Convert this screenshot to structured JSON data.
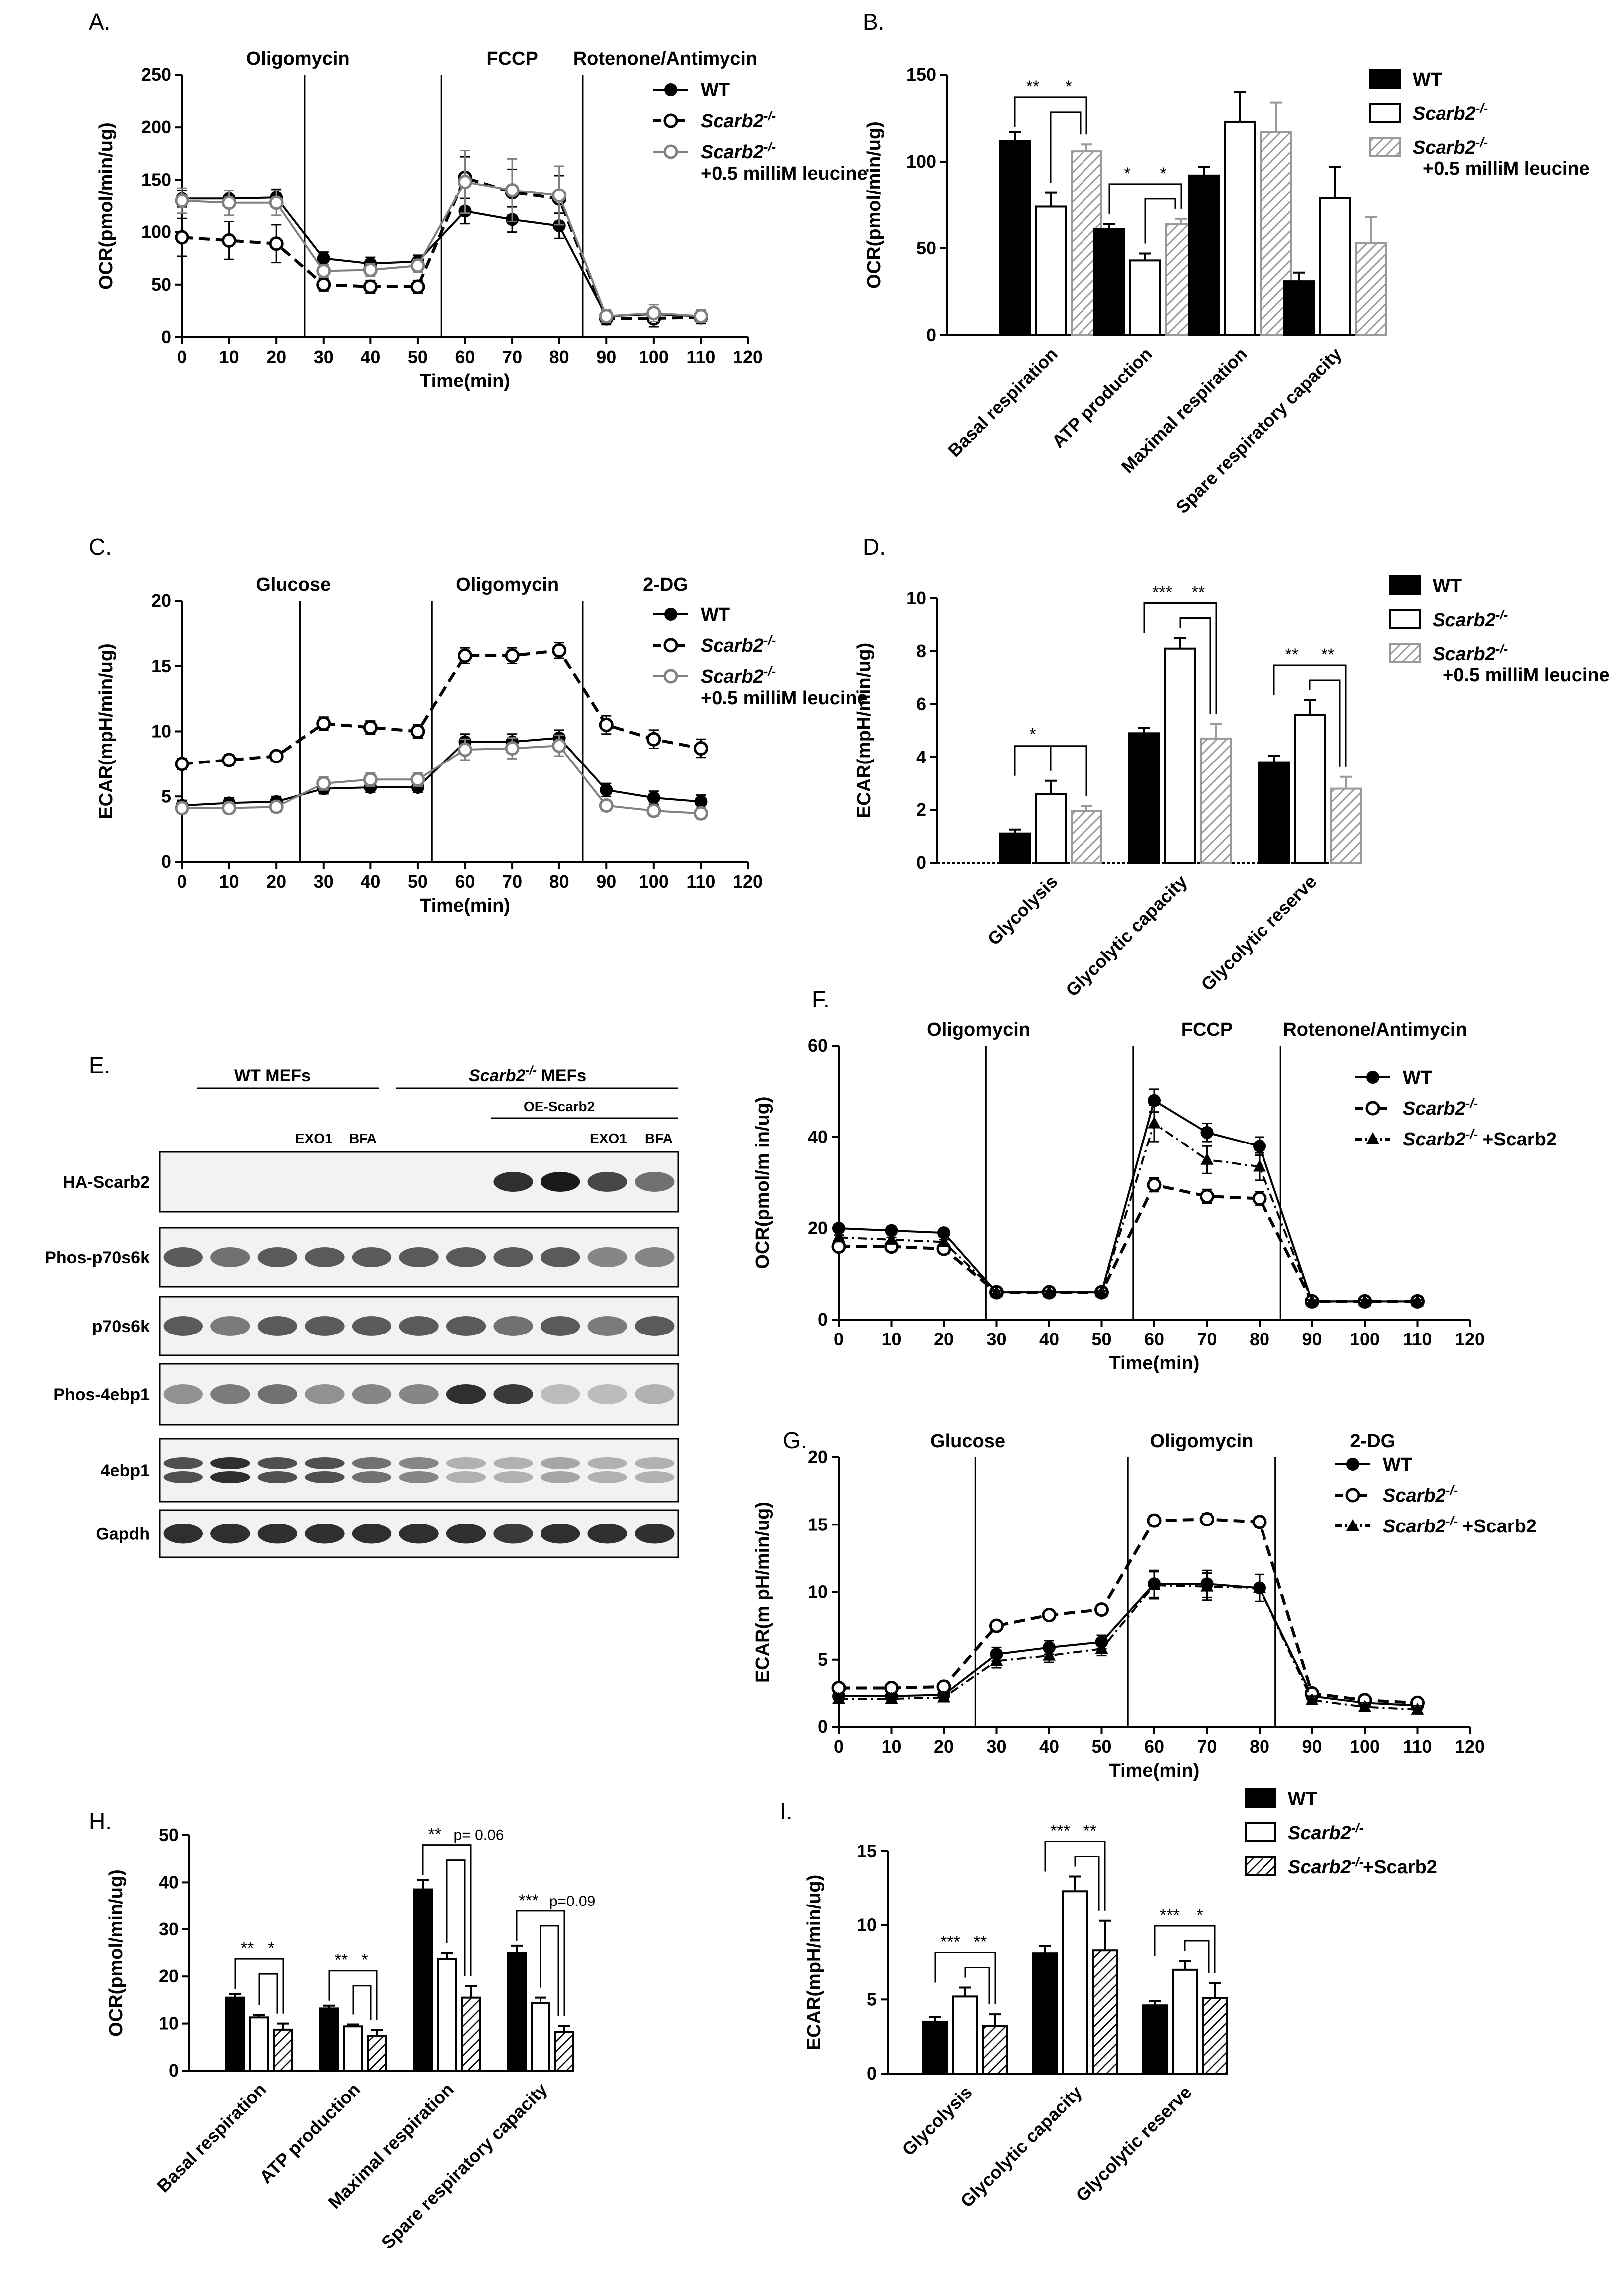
{
  "panels": {
    "A": {
      "label": "A."
    },
    "B": {
      "label": "B."
    },
    "C": {
      "label": "C."
    },
    "D": {
      "label": "D."
    },
    "E": {
      "label": "E."
    },
    "F": {
      "label": "F."
    },
    "G": {
      "label": "G."
    },
    "H": {
      "label": "H."
    },
    "I": {
      "label": "I."
    }
  },
  "legends": {
    "three_leucine": [
      "WT",
      "Scarb2",
      "Scarb2",
      "+0.5 milliM leucine"
    ],
    "three_rescue": [
      "WT",
      "Scarb2",
      "Scarb2",
      "+Scarb2"
    ],
    "ko_superscript": "-/-"
  },
  "blot": {
    "group_wt": "WT  MEFs",
    "group_ko_gene": "Scarb2",
    "group_ko_sup": "-/-",
    "group_ko_rest": " MEFs",
    "oe_label": "OE-Scarb2",
    "lane_labels": [
      "EXO1",
      "BFA",
      "EXO1",
      "BFA"
    ],
    "rows": [
      "HA-Scarb2",
      "Phos-p70s6k",
      "p70s6k",
      "Phos-4ebp1",
      "4ebp1",
      "Gapdh"
    ],
    "colors": {
      "band": "#1a1a1a",
      "background": "#f2f2f2"
    }
  },
  "chart_data": [
    {
      "panel": "A",
      "type": "line",
      "xlabel": "Time(min)",
      "ylabel": "OCR(pmol/min/ug)",
      "xlim": [
        0,
        120
      ],
      "ylim": [
        0,
        250
      ],
      "xticks": [
        0,
        10,
        20,
        30,
        40,
        50,
        60,
        70,
        80,
        90,
        100,
        110,
        120
      ],
      "yticks": [
        0,
        50,
        100,
        150,
        200,
        250
      ],
      "injections": [
        {
          "x": 26,
          "label": "Oligomycin"
        },
        {
          "x": 55,
          "label": "FCCP"
        },
        {
          "x": 85,
          "label": "Rotenone/Antimycin"
        }
      ],
      "x": [
        0,
        10,
        20,
        30,
        40,
        50,
        60,
        70,
        80,
        90,
        100,
        110
      ],
      "series": [
        {
          "name": "WT",
          "values": [
            132,
            132,
            133,
            75,
            70,
            72,
            120,
            112,
            106,
            20,
            22,
            20
          ],
          "err": [
            8,
            8,
            8,
            6,
            6,
            6,
            12,
            12,
            12,
            5,
            5,
            5
          ],
          "color": "#000000",
          "style": "solid",
          "marker": "filled"
        },
        {
          "name": "Scarb2-/-",
          "values": [
            95,
            92,
            89,
            50,
            48,
            48,
            152,
            138,
            132,
            18,
            18,
            19
          ],
          "err": [
            18,
            18,
            18,
            6,
            6,
            6,
            20,
            22,
            22,
            6,
            8,
            6
          ],
          "color": "#000000",
          "style": "dashed",
          "marker": "open"
        },
        {
          "name": "Scarb2-/- +0.5 milliM leucine",
          "values": [
            130,
            128,
            128,
            63,
            64,
            68,
            148,
            140,
            135,
            20,
            23,
            20
          ],
          "err": [
            12,
            12,
            12,
            6,
            6,
            6,
            30,
            30,
            28,
            6,
            8,
            6
          ],
          "color": "#808080",
          "style": "solid",
          "marker": "open"
        }
      ]
    },
    {
      "panel": "B",
      "type": "bar",
      "ylabel": "OCR(pmol/min/ug)",
      "ylim": [
        0,
        150
      ],
      "yticks": [
        0,
        50,
        100,
        150
      ],
      "categories": [
        "Basal respiration",
        "ATP production",
        "Maximal respiration",
        "Spare respiratory capacity"
      ],
      "series": [
        {
          "name": "WT",
          "values": [
            112,
            61,
            92,
            31
          ],
          "err": [
            5,
            3,
            5,
            5
          ],
          "fill": "solid"
        },
        {
          "name": "Scarb2-/-",
          "values": [
            74,
            43,
            123,
            79
          ],
          "err": [
            8,
            4,
            17,
            18
          ],
          "fill": "open"
        },
        {
          "name": "Scarb2-/- +0.5 milliM leucine",
          "values": [
            106,
            64,
            117,
            53
          ],
          "err": [
            4,
            3,
            17,
            15
          ],
          "fill": "hatch"
        }
      ],
      "significance": [
        {
          "category": 0,
          "labels": [
            "**",
            "*"
          ]
        },
        {
          "category": 1,
          "labels": [
            "*",
            "*"
          ]
        }
      ]
    },
    {
      "panel": "C",
      "type": "line",
      "xlabel": "Time(min)",
      "ylabel": "ECAR(mpH/min/ug)",
      "xlim": [
        0,
        120
      ],
      "ylim": [
        0,
        20
      ],
      "xticks": [
        0,
        10,
        20,
        30,
        40,
        50,
        60,
        70,
        80,
        90,
        100,
        110,
        120
      ],
      "yticks": [
        0,
        5,
        10,
        15,
        20
      ],
      "injections": [
        {
          "x": 25,
          "label": "Glucose"
        },
        {
          "x": 53,
          "label": "Oligomycin"
        },
        {
          "x": 85,
          "label": "2-DG"
        }
      ],
      "x": [
        0,
        10,
        20,
        30,
        40,
        50,
        60,
        70,
        80,
        90,
        100,
        110
      ],
      "series": [
        {
          "name": "WT",
          "values": [
            4.3,
            4.5,
            4.6,
            5.6,
            5.7,
            5.7,
            9.2,
            9.2,
            9.5,
            5.5,
            4.9,
            4.6
          ],
          "err": [
            0.4,
            0.4,
            0.4,
            0.4,
            0.4,
            0.4,
            0.6,
            0.6,
            0.6,
            0.5,
            0.5,
            0.5
          ],
          "color": "#000000",
          "style": "solid",
          "marker": "filled"
        },
        {
          "name": "Scarb2-/-",
          "values": [
            7.5,
            7.8,
            8.1,
            10.6,
            10.3,
            10.0,
            15.8,
            15.8,
            16.2,
            10.5,
            9.4,
            8.7
          ],
          "err": [
            0.4,
            0.4,
            0.3,
            0.5,
            0.5,
            0.5,
            0.6,
            0.6,
            0.6,
            0.7,
            0.7,
            0.7
          ],
          "color": "#000000",
          "style": "dashed",
          "marker": "open"
        },
        {
          "name": "Scarb2-/- +0.5 milliM leucine",
          "values": [
            4.1,
            4.1,
            4.2,
            6.0,
            6.3,
            6.3,
            8.6,
            8.7,
            8.9,
            4.3,
            3.9,
            3.7
          ],
          "err": [
            0.4,
            0.4,
            0.4,
            0.5,
            0.5,
            0.5,
            0.8,
            0.8,
            0.8,
            0.4,
            0.4,
            0.4
          ],
          "color": "#808080",
          "style": "solid",
          "marker": "open"
        }
      ]
    },
    {
      "panel": "D",
      "type": "bar",
      "ylabel": "ECAR(mpH/min/ug)",
      "ylim": [
        0,
        10
      ],
      "yticks": [
        0,
        2,
        4,
        6,
        8,
        10
      ],
      "categories": [
        "Glycolysis",
        "Glycolytic capacity",
        "Glycolytic reserve"
      ],
      "series": [
        {
          "name": "WT",
          "values": [
            1.1,
            4.9,
            3.8
          ],
          "err": [
            0.15,
            0.2,
            0.25
          ],
          "fill": "solid"
        },
        {
          "name": "Scarb2-/-",
          "values": [
            2.6,
            8.1,
            5.6
          ],
          "err": [
            0.5,
            0.4,
            0.55
          ],
          "fill": "open"
        },
        {
          "name": "Scarb2-/- +0.5 milliM leucine",
          "values": [
            1.95,
            4.7,
            2.8
          ],
          "err": [
            0.2,
            0.55,
            0.45
          ],
          "fill": "hatch"
        }
      ],
      "significance": [
        {
          "category": 0,
          "labels": [
            "*"
          ]
        },
        {
          "category": 1,
          "labels": [
            "***",
            "**"
          ]
        },
        {
          "category": 2,
          "labels": [
            "**",
            "**"
          ]
        }
      ]
    },
    {
      "panel": "F",
      "type": "line",
      "xlabel": "Time(min)",
      "ylabel": "OCR(pmol/m in/ug)",
      "xlim": [
        0,
        120
      ],
      "ylim": [
        0,
        60
      ],
      "xticks": [
        0,
        10,
        20,
        30,
        40,
        50,
        60,
        70,
        80,
        90,
        100,
        110,
        120
      ],
      "yticks": [
        0,
        20,
        40,
        60
      ],
      "injections": [
        {
          "x": 28,
          "label": "Oligomycin"
        },
        {
          "x": 56,
          "label": "FCCP"
        },
        {
          "x": 84,
          "label": "Rotenone/Antimycin"
        }
      ],
      "x": [
        0,
        10,
        20,
        30,
        40,
        50,
        60,
        70,
        80,
        90,
        100,
        110
      ],
      "series": [
        {
          "name": "WT",
          "values": [
            20,
            19.5,
            19,
            6,
            6,
            6,
            48,
            41,
            38,
            4,
            4,
            4
          ],
          "err": [
            0.5,
            0.5,
            0.5,
            0.3,
            0.3,
            0.3,
            2.5,
            2,
            2,
            0.3,
            0.3,
            0.3
          ],
          "color": "#000000",
          "style": "solid",
          "marker": "filled"
        },
        {
          "name": "Scarb2-/-",
          "values": [
            16,
            16,
            15.5,
            6,
            6,
            6,
            29.5,
            27,
            26.5,
            4,
            4,
            4
          ],
          "err": [
            0.5,
            0.5,
            0.5,
            0.3,
            0.3,
            0.3,
            1.5,
            1.5,
            1.5,
            0.3,
            0.3,
            0.3
          ],
          "color": "#000000",
          "style": "dashed",
          "marker": "open"
        },
        {
          "name": "Scarb2-/- +Scarb2",
          "values": [
            18,
            17.5,
            17,
            6,
            6,
            6,
            43,
            35,
            33.5,
            4,
            4,
            4
          ],
          "err": [
            0.5,
            0.5,
            0.5,
            0.3,
            0.3,
            0.3,
            4,
            3,
            3,
            0.3,
            0.3,
            0.3
          ],
          "color": "#000000",
          "style": "dashdot",
          "marker": "triangle"
        }
      ]
    },
    {
      "panel": "G",
      "type": "line",
      "xlabel": "Time(min)",
      "ylabel": "ECAR(m pH/min/ug)",
      "xlim": [
        0,
        120
      ],
      "ylim": [
        0,
        20
      ],
      "xticks": [
        0,
        10,
        20,
        30,
        40,
        50,
        60,
        70,
        80,
        90,
        100,
        110,
        120
      ],
      "yticks": [
        0,
        5,
        10,
        15,
        20
      ],
      "injections": [
        {
          "x": 26,
          "label": "Glucose"
        },
        {
          "x": 55,
          "label": "Oligomycin"
        },
        {
          "x": 83,
          "label": "2-DG"
        }
      ],
      "x": [
        0,
        10,
        20,
        30,
        40,
        50,
        60,
        70,
        80,
        90,
        100,
        110
      ],
      "series": [
        {
          "name": "WT",
          "values": [
            2.3,
            2.3,
            2.4,
            5.4,
            5.9,
            6.3,
            10.6,
            10.6,
            10.3,
            2.3,
            1.8,
            1.6
          ],
          "err": [
            0.3,
            0.3,
            0.3,
            0.5,
            0.5,
            0.5,
            1.0,
            1.0,
            1.0,
            0.3,
            0.3,
            0.3
          ],
          "color": "#000000",
          "style": "solid",
          "marker": "filled"
        },
        {
          "name": "Scarb2-/-",
          "values": [
            2.9,
            2.9,
            3.0,
            7.5,
            8.3,
            8.7,
            15.3,
            15.4,
            15.2,
            2.5,
            2.0,
            1.8
          ],
          "err": [
            0.3,
            0.3,
            0.3,
            0.3,
            0.3,
            0.3,
            0.4,
            0.4,
            0.4,
            0.3,
            0.3,
            0.3
          ],
          "color": "#000000",
          "style": "dashed",
          "marker": "open"
        },
        {
          "name": "Scarb2-/- +Scarb2",
          "values": [
            2.1,
            2.1,
            2.2,
            4.9,
            5.3,
            5.8,
            10.5,
            10.4,
            10.3,
            2.0,
            1.5,
            1.3
          ],
          "err": [
            0.3,
            0.3,
            0.3,
            0.5,
            0.5,
            0.5,
            1.0,
            1.0,
            1.0,
            0.3,
            0.3,
            0.3
          ],
          "color": "#000000",
          "style": "dashdot",
          "marker": "triangle"
        }
      ]
    },
    {
      "panel": "H",
      "type": "bar",
      "ylabel": "OCR(pmol/min/ug)",
      "ylim": [
        0,
        50
      ],
      "yticks": [
        0,
        10,
        20,
        30,
        40,
        50
      ],
      "categories": [
        "Basal respiration",
        "ATP production",
        "Maximal respiration",
        "Spare respiratory capacity"
      ],
      "series": [
        {
          "name": "WT",
          "values": [
            15.5,
            13.2,
            38.5,
            25.0
          ],
          "err": [
            0.8,
            0.6,
            2.0,
            1.5
          ],
          "fill": "solid"
        },
        {
          "name": "Scarb2-/-",
          "values": [
            11.3,
            9.4,
            23.7,
            14.3
          ],
          "err": [
            0.5,
            0.4,
            1.2,
            1.2
          ],
          "fill": "open"
        },
        {
          "name": "Scarb2-/- +Scarb2",
          "values": [
            8.7,
            7.4,
            15.5,
            8.2
          ],
          "err": [
            1.3,
            1.2,
            2.5,
            1.3
          ],
          "fill": "hatch"
        }
      ],
      "significance": [
        {
          "category": 0,
          "labels": [
            "**",
            "*"
          ]
        },
        {
          "category": 1,
          "labels": [
            "**",
            "*"
          ]
        },
        {
          "category": 2,
          "labels": [
            "**",
            "p= 0.06"
          ]
        },
        {
          "category": 3,
          "labels": [
            "***",
            "p=0.09"
          ]
        }
      ]
    },
    {
      "panel": "I",
      "type": "bar",
      "ylabel": "ECAR(mpH/min/ug)",
      "ylim": [
        0,
        15
      ],
      "yticks": [
        0,
        5,
        10,
        15
      ],
      "categories": [
        "Glycolysis",
        "Glycolytic capacity",
        "Glycolytic reserve"
      ],
      "series": [
        {
          "name": "WT",
          "values": [
            3.5,
            8.1,
            4.6
          ],
          "err": [
            0.3,
            0.5,
            0.3
          ],
          "fill": "solid"
        },
        {
          "name": "Scarb2-/-",
          "values": [
            5.2,
            12.3,
            7.0
          ],
          "err": [
            0.6,
            1.0,
            0.6
          ],
          "fill": "open"
        },
        {
          "name": "Scarb2-/- +Scarb2",
          "values": [
            3.2,
            8.3,
            5.1
          ],
          "err": [
            0.8,
            2.0,
            1.0
          ],
          "fill": "hatch"
        }
      ],
      "significance": [
        {
          "category": 0,
          "labels": [
            "***",
            "**"
          ]
        },
        {
          "category": 1,
          "labels": [
            "***",
            "**"
          ]
        },
        {
          "category": 2,
          "labels": [
            "***",
            "*"
          ]
        }
      ]
    }
  ]
}
